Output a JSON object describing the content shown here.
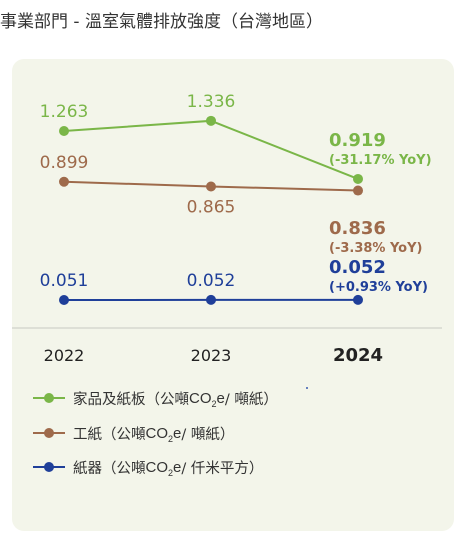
{
  "header": {
    "title": "事業部門 - 溫室氣體排放強度（台灣地區）"
  },
  "chart_data": {
    "type": "line",
    "categories": [
      "2022",
      "2023",
      "2024"
    ],
    "highlight_category": "2024",
    "series": [
      {
        "name": "家品及紙板",
        "color": "#7ab648",
        "values": [
          1.263,
          1.336,
          0.919
        ],
        "value_labels": [
          "1.263",
          "1.336",
          "0.919"
        ],
        "yoy_label": "(-31.17% YoY)"
      },
      {
        "name": "工紙",
        "color": "#9e6a4b",
        "values": [
          0.899,
          0.865,
          0.836
        ],
        "value_labels": [
          "0.899",
          "0.865",
          "0.836"
        ],
        "yoy_label": "(-3.38% YoY)"
      },
      {
        "name": "紙器",
        "color": "#1f3f99",
        "values": [
          0.051,
          0.052,
          0.052
        ],
        "value_labels": [
          "0.051",
          "0.052",
          "0.052"
        ],
        "yoy_label": "(+0.93% YoY)"
      }
    ],
    "legend_placement": "bottom",
    "grid": false
  },
  "legend": [
    {
      "name": "家品及紙板",
      "unit_prefix": "（公噸",
      "unit_co": "CO",
      "unit_sub": "2",
      "unit_e": "e",
      "unit_suffix": " / 噸紙）",
      "color": "#7ab648"
    },
    {
      "name": "工紙",
      "unit_prefix": "（公噸",
      "unit_co": "CO",
      "unit_sub": "2",
      "unit_e": "e",
      "unit_suffix": " / 噸紙）",
      "color": "#9e6a4b"
    },
    {
      "name": "紙器",
      "unit_prefix": "（公噸",
      "unit_co": "CO",
      "unit_sub": "2",
      "unit_e": "e",
      "unit_suffix": " / 仟米平方）",
      "color": "#1f3f99"
    }
  ]
}
